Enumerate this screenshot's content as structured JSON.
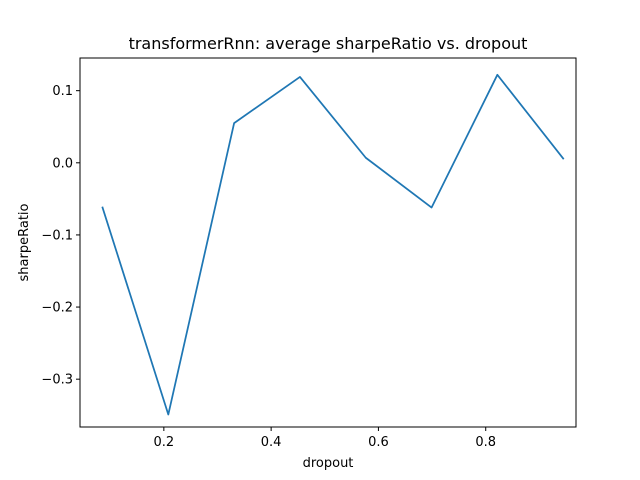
{
  "chart_data": {
    "type": "line",
    "title": "transformerRnn: average sharpeRatio vs. dropout",
    "xlabel": "dropout",
    "ylabel": "sharpeRatio",
    "xlim": [
      0.0437,
      0.9683
    ],
    "ylim": [
      -0.3663,
      0.1453
    ],
    "xticks": [
      {
        "value": 0.2,
        "label": "0.2"
      },
      {
        "value": 0.4,
        "label": "0.4"
      },
      {
        "value": 0.6,
        "label": "0.6"
      },
      {
        "value": 0.8,
        "label": "0.8"
      }
    ],
    "yticks": [
      {
        "value": -0.3,
        "label": "−0.3"
      },
      {
        "value": -0.2,
        "label": "−0.2"
      },
      {
        "value": -0.1,
        "label": "−0.1"
      },
      {
        "value": 0.0,
        "label": "0.0"
      },
      {
        "value": 0.1,
        "label": "0.1"
      }
    ],
    "grid": false,
    "series": [
      {
        "color": "#1f77b4",
        "x": [
          0.0857,
          0.2083,
          0.331,
          0.4537,
          0.5764,
          0.6991,
          0.8217,
          0.9444
        ],
        "y": [
          -0.062,
          -0.349,
          0.055,
          0.119,
          0.007,
          -0.062,
          0.122,
          0.006
        ]
      }
    ]
  }
}
